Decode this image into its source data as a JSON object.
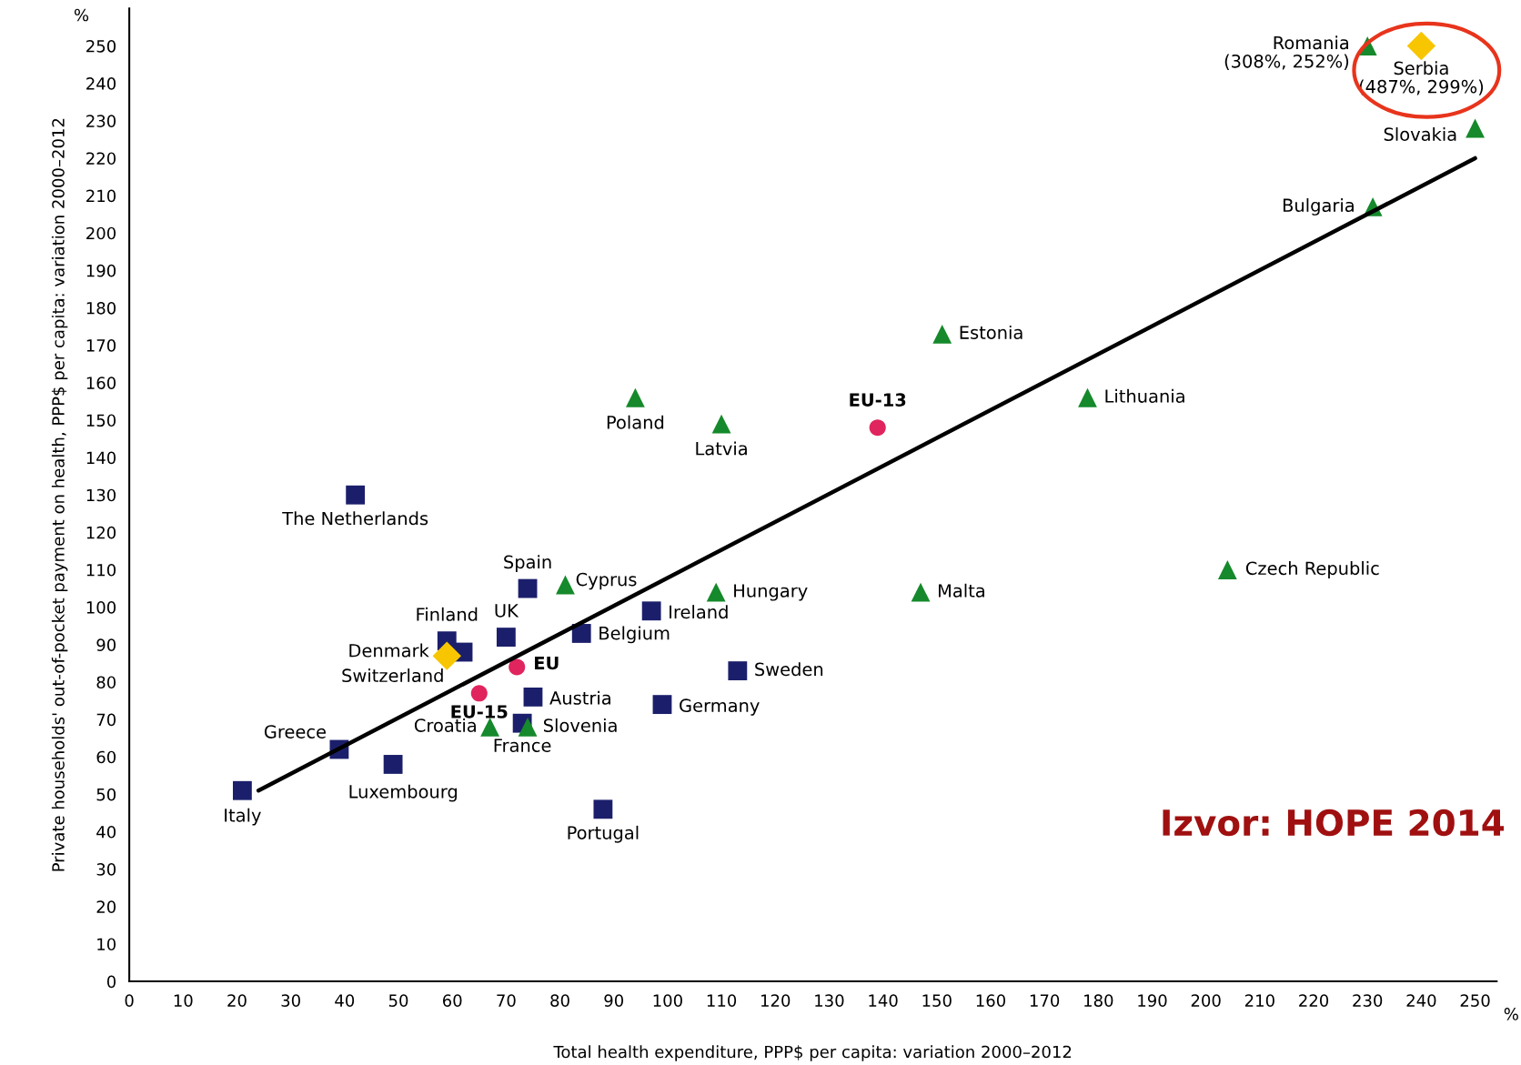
{
  "chart_data": {
    "type": "scatter",
    "xlabel": "Total health expenditure, PPP$ per capita: variation 2000–2012",
    "ylabel": "Private households' out-of-pocket payment on health, PPP$ per capita: variation 2000–2012",
    "xlim": [
      0,
      254
    ],
    "ylim": [
      0,
      260
    ],
    "xticks": [
      0,
      10,
      20,
      30,
      40,
      50,
      60,
      70,
      80,
      90,
      100,
      110,
      120,
      130,
      140,
      150,
      160,
      170,
      180,
      190,
      200,
      210,
      220,
      230,
      240,
      250
    ],
    "yticks": [
      0,
      10,
      20,
      30,
      40,
      50,
      60,
      70,
      80,
      90,
      100,
      110,
      120,
      130,
      140,
      150,
      160,
      170,
      180,
      190,
      200,
      210,
      220,
      230,
      240,
      250
    ],
    "grid": false,
    "legend": false,
    "series": [
      {
        "type": "line",
        "color": "#000000",
        "marker": "none",
        "line_style": "solid",
        "x": [
          24,
          250
        ],
        "values": [
          51,
          220
        ]
      },
      {
        "color": "#1b1f6b",
        "marker": "square",
        "x": [
          21,
          39,
          49,
          42,
          59,
          62,
          70,
          74,
          84,
          97,
          75,
          73,
          113,
          99,
          88
        ],
        "values": [
          51,
          62,
          58,
          130,
          91,
          88,
          92,
          105,
          93,
          99,
          76,
          69,
          83,
          74,
          46
        ]
      },
      {
        "color": "#15892b",
        "marker": "triangle",
        "x": [
          81,
          109,
          67,
          74,
          94,
          110,
          151,
          178,
          147,
          204,
          231,
          250,
          230
        ],
        "values": [
          106,
          104,
          68,
          68,
          156,
          149,
          173,
          156,
          104,
          110,
          207,
          228,
          250
        ]
      },
      {
        "color": "#e0245e",
        "marker": "circle",
        "x": [
          72,
          65,
          139
        ],
        "values": [
          84,
          77,
          148
        ]
      },
      {
        "color": "#f7c600",
        "marker": "diamond",
        "x": [
          59,
          240
        ],
        "values": [
          87,
          250
        ]
      }
    ],
    "annotations": [
      {
        "text": "Italy",
        "x": 21,
        "y": 51
      },
      {
        "text": "Greece",
        "x": 39,
        "y": 62
      },
      {
        "text": "Luxembourg",
        "x": 49,
        "y": 58
      },
      {
        "text": "The Netherlands",
        "x": 42,
        "y": 130
      },
      {
        "text": "Finland",
        "x": 59,
        "y": 91
      },
      {
        "text": "Denmark",
        "x": 59,
        "y": 87
      },
      {
        "text": "Switzerland",
        "x": 59,
        "y": 87
      },
      {
        "text": "UK",
        "x": 70,
        "y": 92
      },
      {
        "text": "Spain",
        "x": 74,
        "y": 105
      },
      {
        "text": "Cyprus",
        "x": 81,
        "y": 106
      },
      {
        "text": "Belgium",
        "x": 84,
        "y": 93
      },
      {
        "text": "Ireland",
        "x": 97,
        "y": 99
      },
      {
        "text": "Hungary",
        "x": 109,
        "y": 104
      },
      {
        "text": "EU",
        "x": 72,
        "y": 84
      },
      {
        "text": "EU-15",
        "x": 65,
        "y": 77
      },
      {
        "text": "Austria",
        "x": 75,
        "y": 76
      },
      {
        "text": "Croatia",
        "x": 67,
        "y": 68
      },
      {
        "text": "France",
        "x": 73,
        "y": 69
      },
      {
        "text": "Slovenia",
        "x": 74,
        "y": 68
      },
      {
        "text": "Sweden",
        "x": 113,
        "y": 83
      },
      {
        "text": "Germany",
        "x": 99,
        "y": 74
      },
      {
        "text": "Portugal",
        "x": 88,
        "y": 46
      },
      {
        "text": "Poland",
        "x": 94,
        "y": 156
      },
      {
        "text": "Latvia",
        "x": 110,
        "y": 149
      },
      {
        "text": "EU-13",
        "x": 139,
        "y": 148
      },
      {
        "text": "Estonia",
        "x": 151,
        "y": 173
      },
      {
        "text": "Lithuania",
        "x": 178,
        "y": 156
      },
      {
        "text": "Malta",
        "x": 147,
        "y": 104
      },
      {
        "text": "Czech Republic",
        "x": 204,
        "y": 110
      },
      {
        "text": "Bulgaria",
        "x": 231,
        "y": 207
      },
      {
        "text": "Slovakia",
        "x": 250,
        "y": 228
      },
      {
        "text": "Romania\n(308%, 252%)",
        "x": 230,
        "y": 250
      },
      {
        "text": "Serbia\n(487%, 299%)",
        "x": 240,
        "y": 250
      },
      "%",
      "%",
      "Izvor: HOPE 2014"
    ]
  }
}
